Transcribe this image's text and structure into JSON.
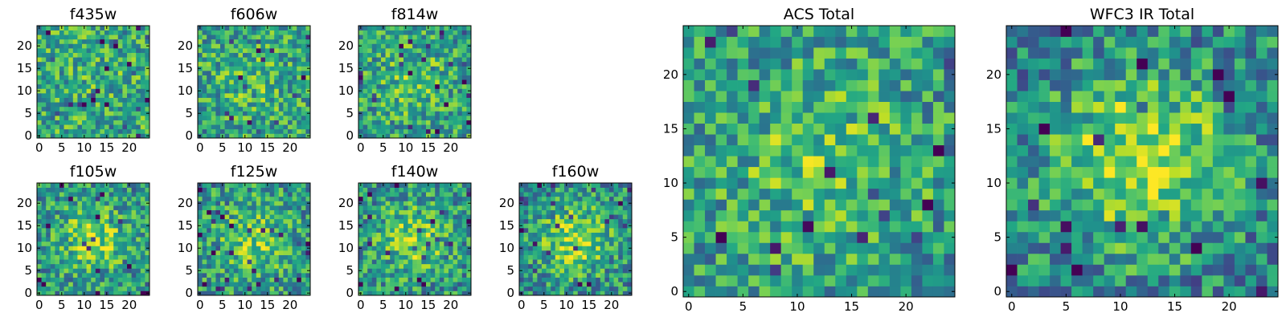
{
  "chart_data": [
    {
      "id": "f435w",
      "type": "heatmap",
      "title": "f435w",
      "colormap": "viridis",
      "xlim": [
        0,
        24
      ],
      "ylim": [
        0,
        24
      ],
      "x_ticks": [
        0,
        5,
        10,
        15,
        20
      ],
      "y_ticks": [
        0,
        5,
        10,
        15,
        20
      ],
      "grid_size": 25,
      "center_bright": 0.05,
      "seed": 11
    },
    {
      "id": "f606w",
      "type": "heatmap",
      "title": "f606w",
      "colormap": "viridis",
      "xlim": [
        0,
        24
      ],
      "ylim": [
        0,
        24
      ],
      "x_ticks": [
        0,
        5,
        10,
        15,
        20
      ],
      "y_ticks": [
        0,
        5,
        10,
        15,
        20
      ],
      "grid_size": 25,
      "center_bright": 0.1,
      "seed": 23
    },
    {
      "id": "f814w",
      "type": "heatmap",
      "title": "f814w",
      "colormap": "viridis",
      "xlim": [
        0,
        24
      ],
      "ylim": [
        0,
        24
      ],
      "x_ticks": [
        0,
        5,
        10,
        15,
        20
      ],
      "y_ticks": [
        0,
        5,
        10,
        15,
        20
      ],
      "grid_size": 25,
      "center_bright": 0.15,
      "seed": 37
    },
    {
      "id": "f105w",
      "type": "heatmap",
      "title": "f105w",
      "colormap": "viridis",
      "xlim": [
        0,
        24
      ],
      "ylim": [
        0,
        24
      ],
      "x_ticks": [
        0,
        5,
        10,
        15,
        20
      ],
      "y_ticks": [
        0,
        5,
        10,
        15,
        20
      ],
      "grid_size": 25,
      "center_bright": 0.3,
      "seed": 41
    },
    {
      "id": "f125w",
      "type": "heatmap",
      "title": "f125w",
      "colormap": "viridis",
      "xlim": [
        0,
        24
      ],
      "ylim": [
        0,
        24
      ],
      "x_ticks": [
        0,
        5,
        10,
        15,
        20
      ],
      "y_ticks": [
        0,
        5,
        10,
        15,
        20
      ],
      "grid_size": 25,
      "center_bright": 0.25,
      "seed": 53
    },
    {
      "id": "f140w",
      "type": "heatmap",
      "title": "f140w",
      "colormap": "viridis",
      "xlim": [
        0,
        24
      ],
      "ylim": [
        0,
        24
      ],
      "x_ticks": [
        0,
        5,
        10,
        15,
        20
      ],
      "y_ticks": [
        0,
        5,
        10,
        15,
        20
      ],
      "grid_size": 25,
      "center_bright": 0.3,
      "seed": 67
    },
    {
      "id": "f160w",
      "type": "heatmap",
      "title": "f160w",
      "colormap": "viridis",
      "xlim": [
        0,
        24
      ],
      "ylim": [
        0,
        24
      ],
      "x_ticks": [
        0,
        5,
        10,
        15,
        20
      ],
      "y_ticks": [
        0,
        5,
        10,
        15,
        20
      ],
      "grid_size": 25,
      "center_bright": 0.35,
      "seed": 79
    },
    {
      "id": "acs_total",
      "type": "heatmap",
      "title": "ACS Total",
      "colormap": "viridis",
      "xlim": [
        0,
        24
      ],
      "ylim": [
        0,
        24
      ],
      "x_ticks": [
        0,
        5,
        10,
        15,
        20
      ],
      "y_ticks": [
        0,
        5,
        10,
        15,
        20
      ],
      "grid_size": 25,
      "center_bright": 0.2,
      "seed": 97
    },
    {
      "id": "wfc3_ir_total",
      "type": "heatmap",
      "title": "WFC3 IR Total",
      "colormap": "viridis",
      "xlim": [
        0,
        24
      ],
      "ylim": [
        0,
        24
      ],
      "x_ticks": [
        0,
        5,
        10,
        15,
        20
      ],
      "y_ticks": [
        0,
        5,
        10,
        15,
        20
      ],
      "grid_size": 25,
      "center_bright": 0.45,
      "seed": 131
    }
  ]
}
